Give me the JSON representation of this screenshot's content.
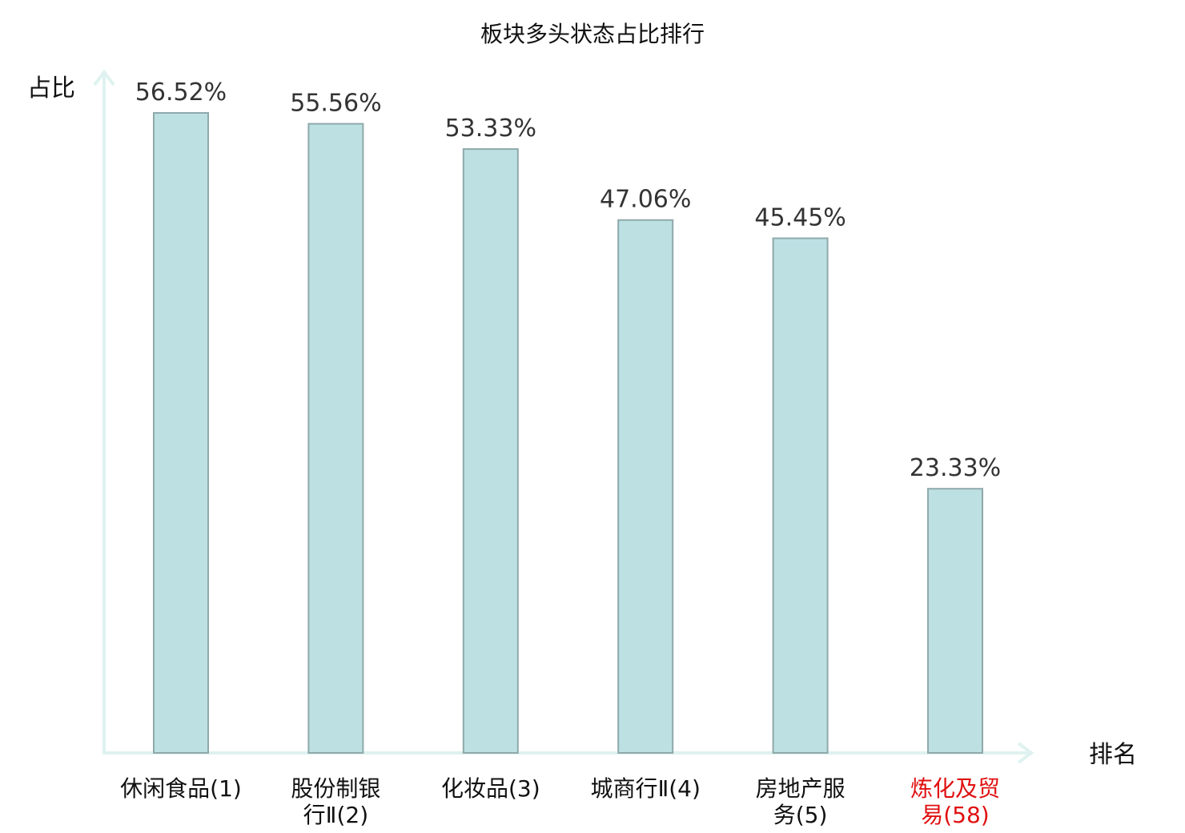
{
  "chart_data": {
    "type": "bar",
    "title": "板块多头状态占比排行",
    "ylabel": "占比",
    "xlabel": "排名",
    "categories": [
      [
        "休闲食品(1)"
      ],
      [
        "股份制银",
        "行Ⅱ(2)"
      ],
      [
        "化妆品(3)"
      ],
      [
        "城商行Ⅱ(4)"
      ],
      [
        "房地产服",
        "务(5)"
      ],
      [
        "炼化及贸",
        "易(58)"
      ]
    ],
    "values": [
      56.52,
      55.56,
      53.33,
      47.06,
      45.45,
      23.33
    ],
    "value_labels": [
      "56.52%",
      "55.56%",
      "53.33%",
      "47.06%",
      "45.45%",
      "23.33%"
    ],
    "ylim": [
      0,
      56.52
    ],
    "grid": false,
    "colors": {
      "bar_fill": "#bde0e3",
      "bar_stroke": "#8fa9ab",
      "axis": "#dff2f0",
      "category_text": "#111111",
      "highlight_text": "#e01010"
    },
    "highlight_index": 5
  }
}
